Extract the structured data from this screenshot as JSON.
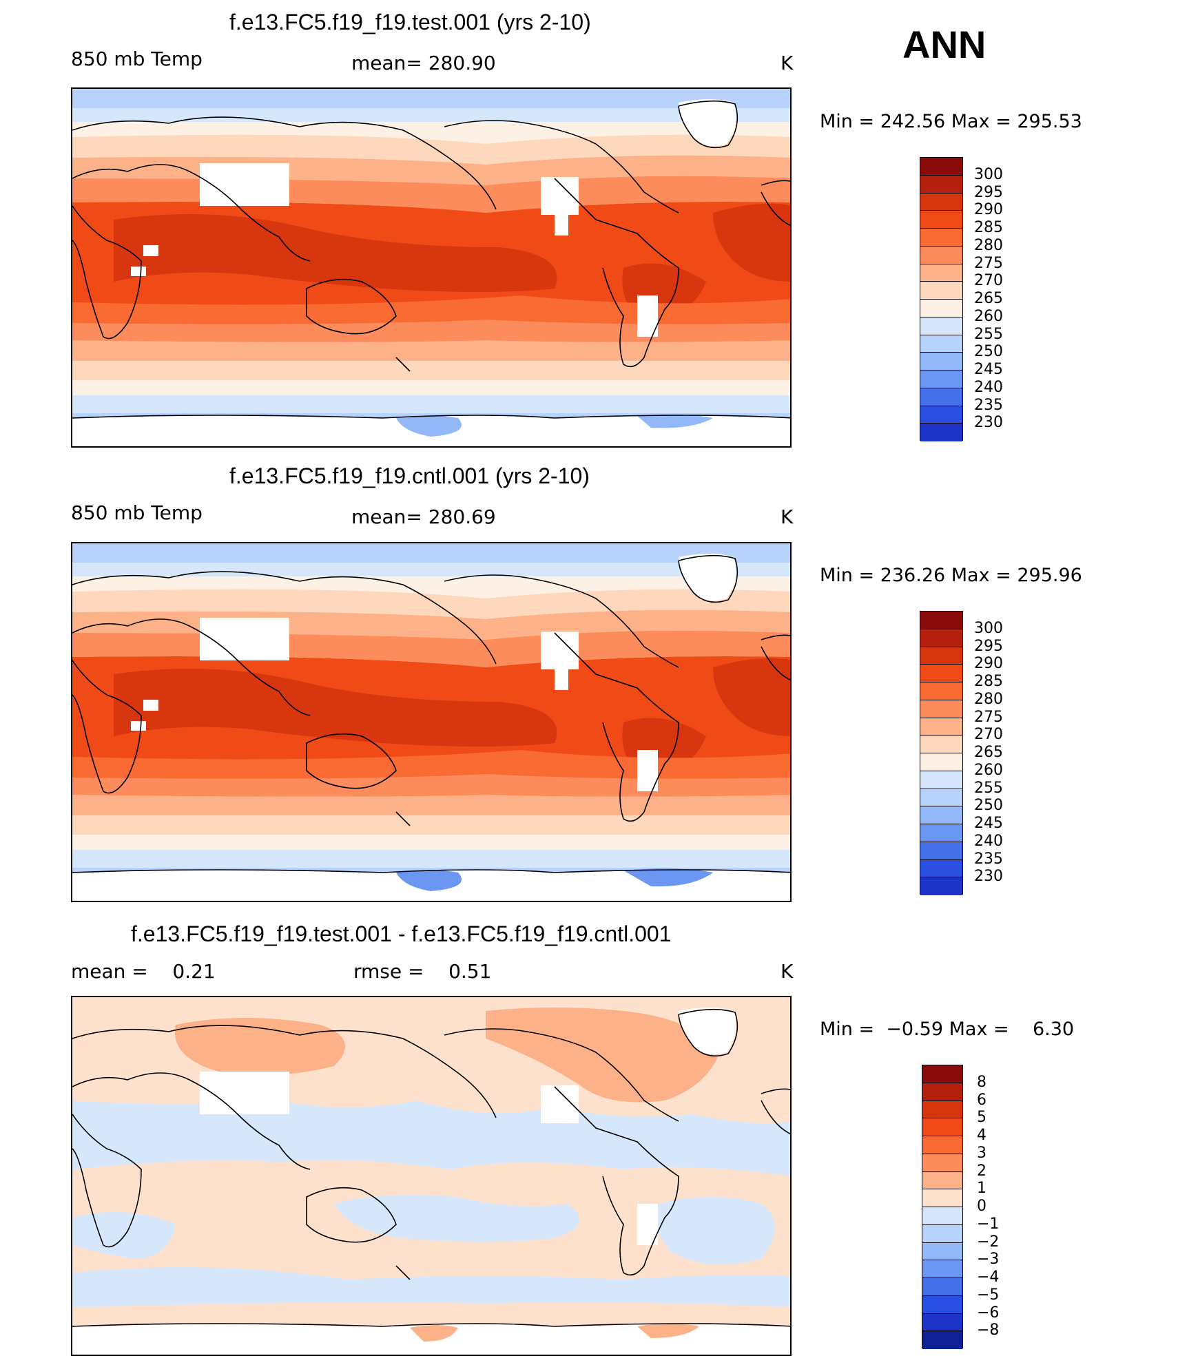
{
  "season": "ANN",
  "panels": [
    {
      "title": "f.e13.FC5.f19_f19.test.001 (yrs 2-10)",
      "left_label": "850 mb Temp",
      "center_label": "mean= 280.90",
      "units": "K",
      "minmax": "Min = 242.56 Max = 295.53",
      "levels": [
        "300",
        "295",
        "290",
        "285",
        "280",
        "275",
        "270",
        "265",
        "260",
        "255",
        "250",
        "245",
        "240",
        "235",
        "230"
      ]
    },
    {
      "title": "f.e13.FC5.f19_f19.cntl.001 (yrs 2-10)",
      "left_label": "850 mb Temp",
      "center_label": "mean= 280.69",
      "units": "K",
      "minmax": "Min = 236.26 Max = 295.96",
      "levels": [
        "300",
        "295",
        "290",
        "285",
        "280",
        "275",
        "270",
        "265",
        "260",
        "255",
        "250",
        "245",
        "240",
        "235",
        "230"
      ]
    },
    {
      "title": "f.e13.FC5.f19_f19.test.001 - f.e13.FC5.f19_f19.cntl.001",
      "left_label": "mean =    0.21",
      "center_label": "rmse =    0.51",
      "units": "K",
      "minmax": "Min =  −0.59 Max =    6.30",
      "levels": [
        "8",
        "6",
        "5",
        "4",
        "3",
        "2",
        "1",
        "0",
        "−1",
        "−2",
        "−3",
        "−4",
        "−5",
        "−6",
        "−8"
      ]
    }
  ],
  "colors": {
    "abs_scale": [
      "#8a0b0b",
      "#b5200e",
      "#d8360f",
      "#f04b17",
      "#fa6a33",
      "#fd8c5c",
      "#fcb189",
      "#fdd8bd",
      "#fdf0e4",
      "#d7e7fb",
      "#b8d3fb",
      "#93b8f8",
      "#6b96f1",
      "#4471ea",
      "#2a4fe0",
      "#1e33c8",
      "#102196",
      "#08136a"
    ],
    "diff_scale": [
      "#8a0b0b",
      "#b5200e",
      "#d8360f",
      "#f04b17",
      "#fa6a33",
      "#fd8c5c",
      "#fcb189",
      "#fde1cc",
      "#d7e7fb",
      "#b8d3fb",
      "#93b8f8",
      "#6b96f1",
      "#4471ea",
      "#2a4fe0",
      "#1e33c8",
      "#102196",
      "#08136a"
    ]
  }
}
